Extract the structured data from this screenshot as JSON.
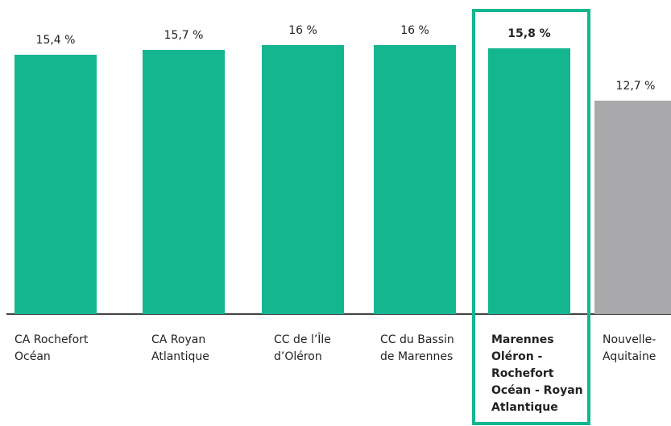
{
  "chart_data": {
    "type": "bar",
    "categories": [
      "CA Rochefort\nOcéan",
      "CA Royan\nAtlantique",
      "CC de l’Île\nd’Oléron",
      "CC du Bassin\nde Marennes",
      "Marennes\nOléron -\nRochefort\nOcéan - Royan\nAtlantique",
      "Nouvelle-\nAquitaine"
    ],
    "values": [
      15.4,
      15.7,
      16,
      16,
      15.8,
      12.7
    ],
    "value_labels": [
      "15,4 %",
      "15,7 %",
      "16 %",
      "16 %",
      "15,8 %",
      "12,7 %"
    ],
    "colors": [
      "#13b68f",
      "#13b68f",
      "#13b68f",
      "#13b68f",
      "#13b68f",
      "#a9a9ab"
    ],
    "highlight_index": 4
  }
}
